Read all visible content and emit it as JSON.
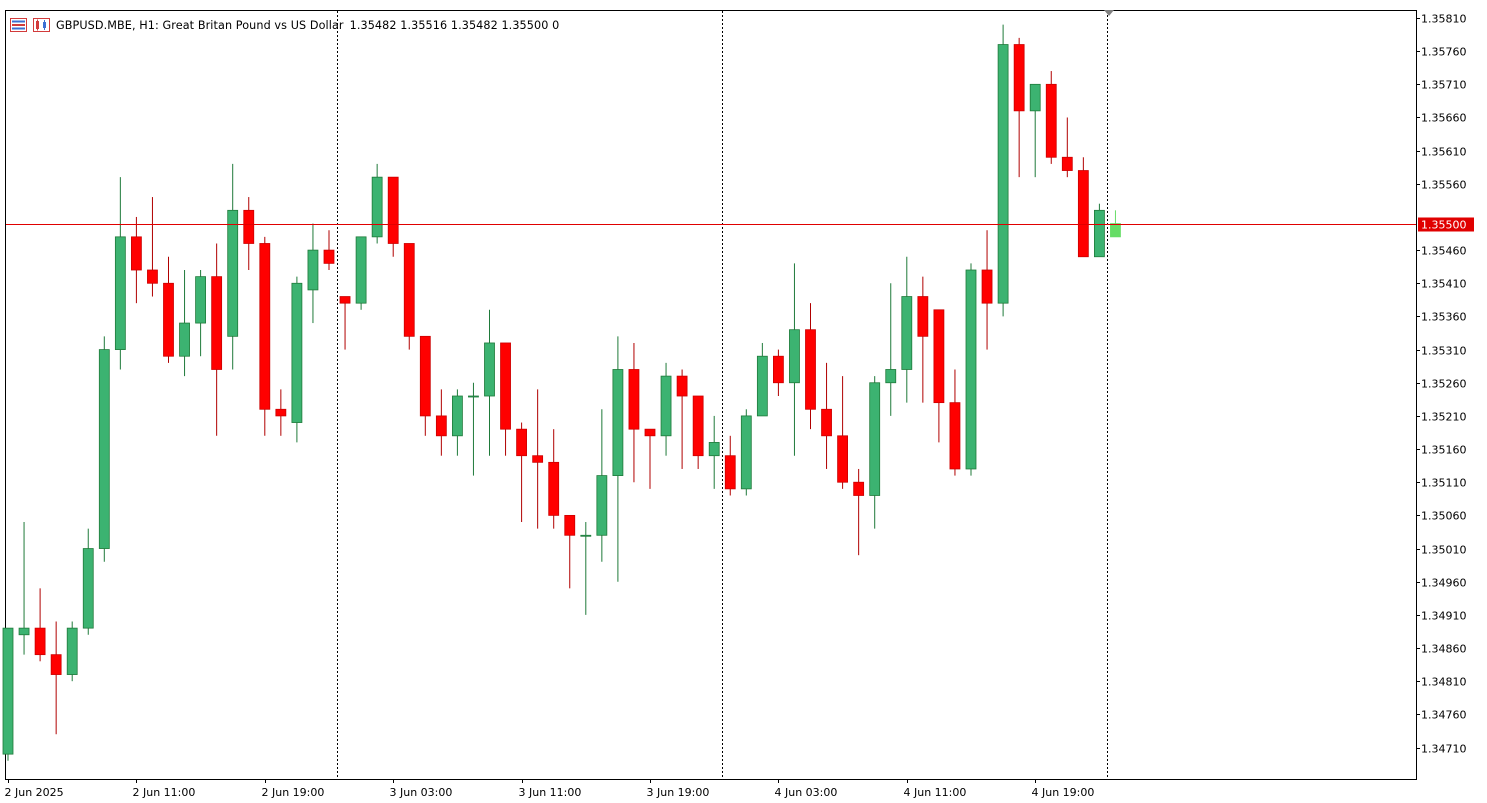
{
  "header": {
    "title": "GBPUSD.MBE, H1:  Great Britan Pound vs US Dollar",
    "ohlc": "1.35482 1.35516 1.35482 1.35500  0",
    "icons": [
      "trading-history-icon",
      "chart-properties-icon"
    ]
  },
  "colors": {
    "up": "#3cb371",
    "down": "#ff0000",
    "bid_line": "#e00000",
    "current_bar": "#66dd66"
  },
  "chart_data": {
    "type": "candlestick",
    "symbol": "GBPUSD.MBE",
    "timeframe": "H1",
    "ylim": [
      1.3466,
      1.3584
    ],
    "y_ticks": [
      "1.35810",
      "1.35760",
      "1.35710",
      "1.35660",
      "1.35610",
      "1.35560",
      "1.35510",
      "1.35460",
      "1.35410",
      "1.35360",
      "1.35310",
      "1.35260",
      "1.35210",
      "1.35160",
      "1.35110",
      "1.35060",
      "1.35010",
      "1.34960",
      "1.34910",
      "1.34860",
      "1.34810",
      "1.34760",
      "1.34710"
    ],
    "x_ticks": [
      {
        "label": "2 Jun 2025",
        "bar": 0
      },
      {
        "label": "2 Jun 11:00",
        "bar": 8
      },
      {
        "label": "2 Jun 19:00",
        "bar": 16
      },
      {
        "label": "3 Jun 03:00",
        "bar": 24
      },
      {
        "label": "3 Jun 11:00",
        "bar": 32
      },
      {
        "label": "3 Jun 19:00",
        "bar": 40
      },
      {
        "label": "4 Jun 03:00",
        "bar": 48
      },
      {
        "label": "4 Jun 11:00",
        "bar": 56
      },
      {
        "label": "4 Jun 19:00",
        "bar": 64
      }
    ],
    "day_separators": [
      21,
      45,
      69
    ],
    "current_price": "1.35500",
    "candles": [
      [
        1.347,
        1.3489,
        1.3469,
        1.3489
      ],
      [
        1.3488,
        1.3505,
        1.3485,
        1.3489
      ],
      [
        1.3489,
        1.3495,
        1.3484,
        1.3485
      ],
      [
        1.3485,
        1.349,
        1.3473,
        1.3482
      ],
      [
        1.3482,
        1.349,
        1.3481,
        1.3489
      ],
      [
        1.3489,
        1.3504,
        1.3488,
        1.3501
      ],
      [
        1.3501,
        1.3533,
        1.3499,
        1.3531
      ],
      [
        1.3531,
        1.3557,
        1.3528,
        1.3548
      ],
      [
        1.3548,
        1.3551,
        1.3538,
        1.3543
      ],
      [
        1.3543,
        1.3554,
        1.3539,
        1.3541
      ],
      [
        1.3541,
        1.3545,
        1.3529,
        1.353
      ],
      [
        1.353,
        1.3543,
        1.3527,
        1.3535
      ],
      [
        1.3535,
        1.3543,
        1.353,
        1.3542
      ],
      [
        1.3542,
        1.3547,
        1.3518,
        1.3528
      ],
      [
        1.3533,
        1.3559,
        1.3528,
        1.3552
      ],
      [
        1.3552,
        1.3554,
        1.3543,
        1.3547
      ],
      [
        1.3547,
        1.3548,
        1.3518,
        1.3522
      ],
      [
        1.3522,
        1.3525,
        1.3518,
        1.3521
      ],
      [
        1.352,
        1.3542,
        1.3517,
        1.3541
      ],
      [
        1.354,
        1.355,
        1.3535,
        1.3546
      ],
      [
        1.3546,
        1.3549,
        1.3543,
        1.3544
      ],
      [
        1.3539,
        1.3539,
        1.3531,
        1.3538
      ],
      [
        1.3538,
        1.3548,
        1.3537,
        1.3548
      ],
      [
        1.3548,
        1.3559,
        1.3547,
        1.3557
      ],
      [
        1.3557,
        1.3557,
        1.3545,
        1.3547
      ],
      [
        1.3547,
        1.3547,
        1.3531,
        1.3533
      ],
      [
        1.3533,
        1.3533,
        1.3518,
        1.3521
      ],
      [
        1.3521,
        1.3525,
        1.3515,
        1.3518
      ],
      [
        1.3518,
        1.3525,
        1.3515,
        1.3524
      ],
      [
        1.3524,
        1.3526,
        1.3512,
        1.3524
      ],
      [
        1.3524,
        1.3537,
        1.3515,
        1.3532
      ],
      [
        1.3532,
        1.3532,
        1.3515,
        1.3519
      ],
      [
        1.3519,
        1.352,
        1.3505,
        1.3515
      ],
      [
        1.3515,
        1.3525,
        1.3504,
        1.3514
      ],
      [
        1.3514,
        1.3519,
        1.3504,
        1.3506
      ],
      [
        1.3506,
        1.3506,
        1.3495,
        1.3503
      ],
      [
        1.3503,
        1.3505,
        1.3491,
        1.3503
      ],
      [
        1.3503,
        1.3522,
        1.3499,
        1.3512
      ],
      [
        1.3512,
        1.3533,
        1.3496,
        1.3528
      ],
      [
        1.3528,
        1.3532,
        1.3511,
        1.3519
      ],
      [
        1.3519,
        1.3519,
        1.351,
        1.3518
      ],
      [
        1.3518,
        1.3529,
        1.3515,
        1.3527
      ],
      [
        1.3527,
        1.3528,
        1.3513,
        1.3524
      ],
      [
        1.3524,
        1.3524,
        1.3513,
        1.3515
      ],
      [
        1.3515,
        1.3521,
        1.351,
        1.3517
      ],
      [
        1.3515,
        1.3518,
        1.3509,
        1.351
      ],
      [
        1.351,
        1.3522,
        1.3509,
        1.3521
      ],
      [
        1.3521,
        1.3532,
        1.3521,
        1.353
      ],
      [
        1.353,
        1.3531,
        1.3524,
        1.3526
      ],
      [
        1.3526,
        1.3544,
        1.3515,
        1.3534
      ],
      [
        1.3534,
        1.3538,
        1.3519,
        1.3522
      ],
      [
        1.3522,
        1.3529,
        1.3513,
        1.3518
      ],
      [
        1.3518,
        1.3527,
        1.351,
        1.3511
      ],
      [
        1.3511,
        1.3513,
        1.35,
        1.3509
      ],
      [
        1.3509,
        1.3527,
        1.3504,
        1.3526
      ],
      [
        1.3526,
        1.3541,
        1.3521,
        1.3528
      ],
      [
        1.3528,
        1.3545,
        1.3523,
        1.3539
      ],
      [
        1.3539,
        1.3542,
        1.3523,
        1.3533
      ],
      [
        1.3537,
        1.3537,
        1.3517,
        1.3523
      ],
      [
        1.3523,
        1.3528,
        1.3512,
        1.3513
      ],
      [
        1.3513,
        1.3544,
        1.3512,
        1.3543
      ],
      [
        1.3543,
        1.3549,
        1.3531,
        1.3538
      ],
      [
        1.3538,
        1.358,
        1.3536,
        1.3577
      ],
      [
        1.3577,
        1.3578,
        1.3557,
        1.3567
      ],
      [
        1.3567,
        1.3571,
        1.3557,
        1.3571
      ],
      [
        1.3571,
        1.3573,
        1.3559,
        1.356
      ],
      [
        1.356,
        1.3566,
        1.3557,
        1.3558
      ],
      [
        1.3558,
        1.356,
        1.3545,
        1.3545
      ],
      [
        1.3545,
        1.3553,
        1.3545,
        1.3552
      ],
      [
        1.3548,
        1.3552,
        1.3548,
        1.355
      ]
    ]
  }
}
